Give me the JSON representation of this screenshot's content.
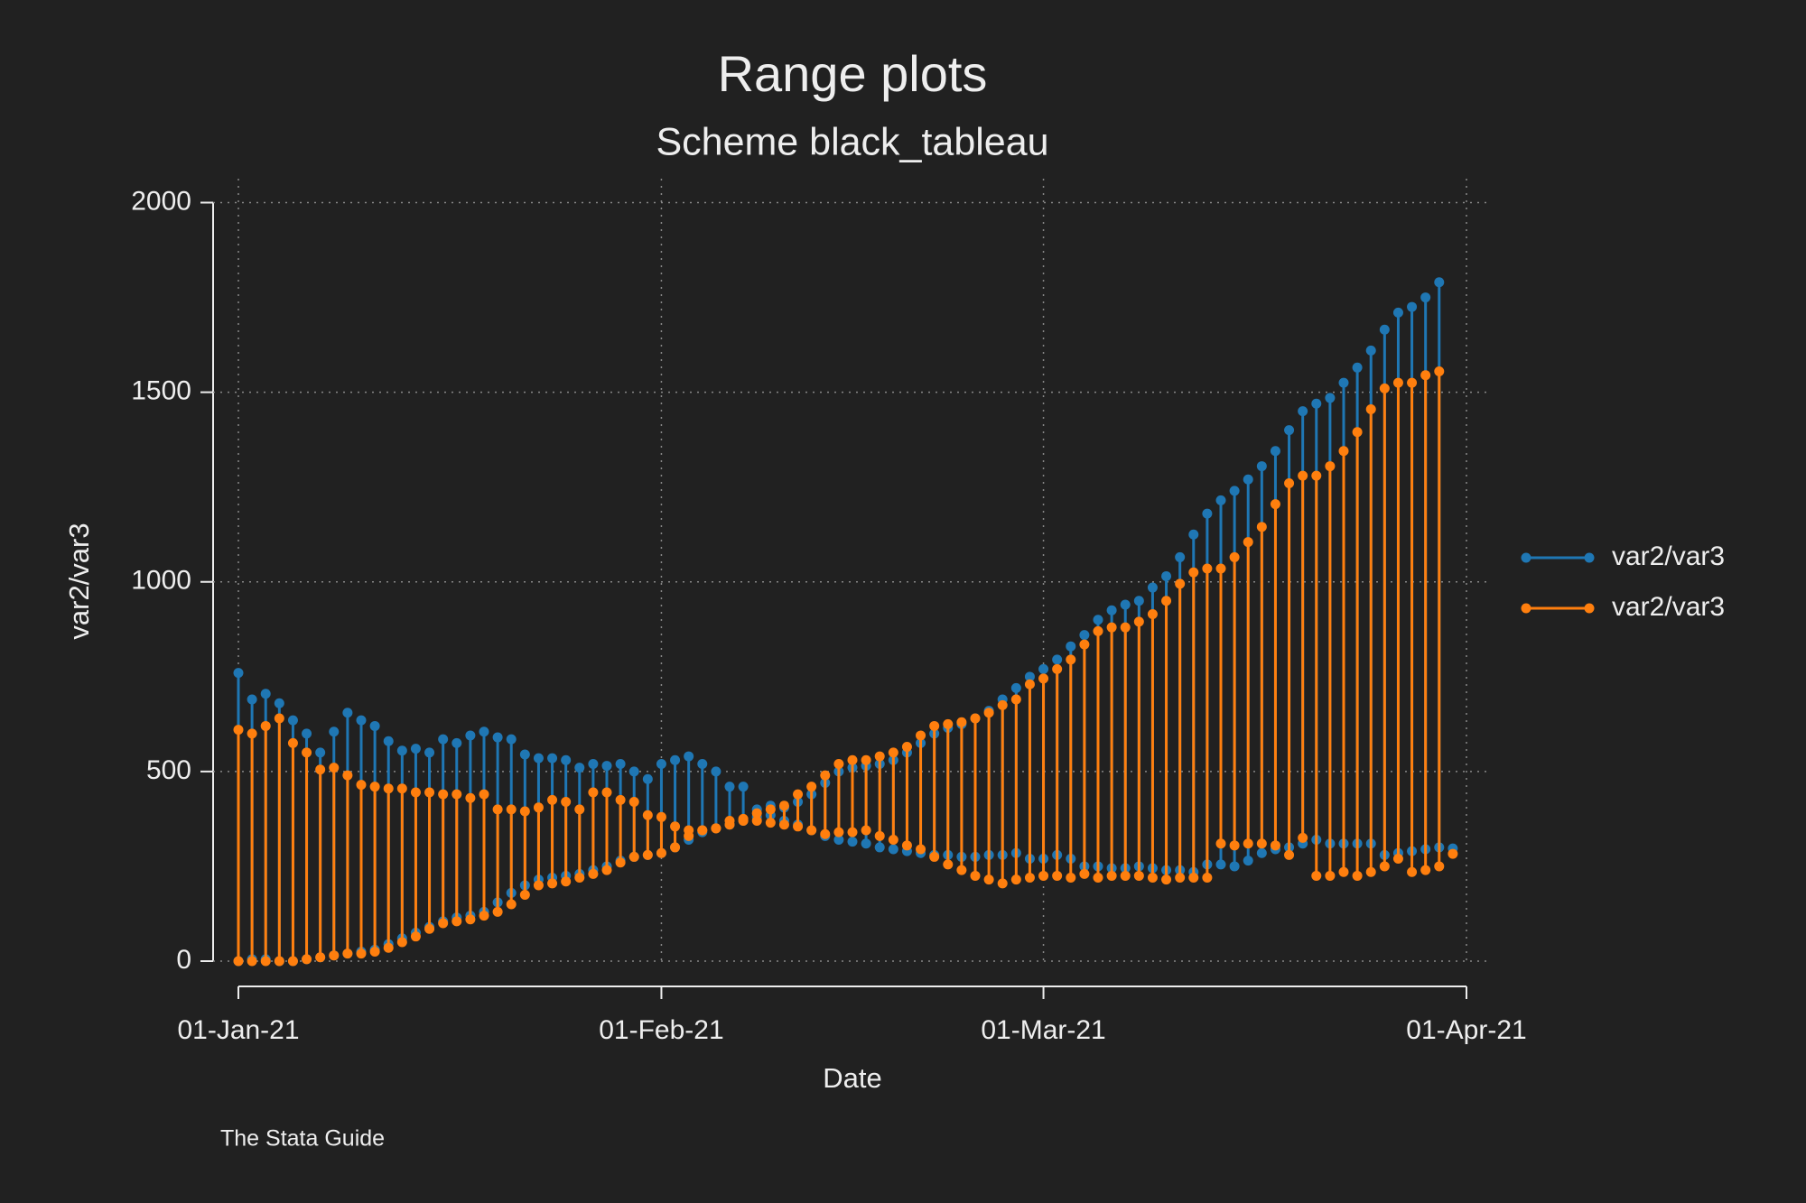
{
  "chart_data": {
    "type": "range",
    "title": "Range plots",
    "subtitle": "Scheme black_tableau",
    "xlabel": "Date",
    "ylabel": "var2/var3",
    "note": "The Stata Guide",
    "x": [
      22281,
      22282,
      22283,
      22284,
      22285,
      22286,
      22287,
      22288,
      22289,
      22290,
      22291,
      22292,
      22293,
      22294,
      22295,
      22296,
      22297,
      22298,
      22299,
      22300,
      22301,
      22302,
      22303,
      22304,
      22305,
      22306,
      22307,
      22308,
      22309,
      22310,
      22311,
      22312,
      22313,
      22314,
      22315,
      22316,
      22317,
      22318,
      22319,
      22320,
      22321,
      22322,
      22323,
      22324,
      22325,
      22326,
      22327,
      22328,
      22329,
      22330,
      22331,
      22332,
      22333,
      22334,
      22335,
      22336,
      22337,
      22338,
      22339,
      22340,
      22341,
      22342,
      22343,
      22344,
      22345,
      22346,
      22347,
      22348,
      22349,
      22350,
      22351,
      22352,
      22353,
      22354,
      22355,
      22356,
      22357,
      22358,
      22359,
      22360,
      22361,
      22362,
      22363,
      22364,
      22365,
      22366,
      22367,
      22368,
      22369,
      22370
    ],
    "series": [
      {
        "name": "var2/var3",
        "color": "#1f77b4",
        "high": [
          760,
          690,
          705,
          680,
          635,
          600,
          550,
          605,
          655,
          635,
          620,
          580,
          555,
          560,
          550,
          585,
          575,
          595,
          605,
          590,
          585,
          545,
          535,
          535,
          530,
          510,
          520,
          515,
          520,
          500,
          480,
          520,
          530,
          540,
          520,
          500,
          460,
          460,
          400,
          410,
          405,
          420,
          440,
          470,
          500,
          510,
          515,
          520,
          530,
          550,
          575,
          600,
          615,
          625,
          640,
          660,
          690,
          720,
          750,
          770,
          795,
          830,
          860,
          900,
          925,
          940,
          950,
          985,
          1015,
          1065,
          1125,
          1180,
          1215,
          1240,
          1270,
          1305,
          1345,
          1400,
          1450,
          1470,
          1485,
          1525,
          1565,
          1610,
          1665,
          1710,
          1725,
          1750,
          1790,
          null
        ],
        "low": [
          0,
          5,
          5,
          0,
          0,
          5,
          10,
          15,
          20,
          25,
          30,
          45,
          60,
          75,
          90,
          105,
          115,
          120,
          130,
          155,
          180,
          200,
          215,
          220,
          225,
          230,
          240,
          250,
          265,
          275,
          280,
          285,
          300,
          320,
          340,
          350,
          360,
          370,
          380,
          385,
          370,
          360,
          345,
          330,
          320,
          315,
          310,
          300,
          295,
          290,
          285,
          280,
          280,
          275,
          275,
          280,
          280,
          285,
          270,
          270,
          280,
          270,
          250,
          250,
          245,
          245,
          250,
          245,
          240,
          240,
          235,
          255,
          255,
          250,
          265,
          285,
          295,
          300,
          310,
          320,
          310,
          310,
          310,
          310,
          280,
          285,
          290,
          295,
          300,
          297
        ]
      },
      {
        "name": "var2/var3",
        "color": "#ff7f0e",
        "high": [
          610,
          600,
          620,
          640,
          575,
          550,
          505,
          510,
          490,
          465,
          460,
          455,
          455,
          445,
          445,
          440,
          440,
          430,
          440,
          400,
          400,
          395,
          405,
          425,
          420,
          400,
          445,
          445,
          425,
          420,
          385,
          380,
          355,
          345,
          345,
          350,
          370,
          375,
          390,
          400,
          410,
          440,
          460,
          490,
          520,
          530,
          530,
          540,
          550,
          565,
          595,
          620,
          625,
          630,
          640,
          655,
          675,
          690,
          730,
          745,
          770,
          795,
          835,
          870,
          880,
          880,
          895,
          915,
          950,
          995,
          1025,
          1035,
          1035,
          1065,
          1105,
          1145,
          1205,
          1260,
          1280,
          1280,
          1305,
          1345,
          1395,
          1455,
          1510,
          1525,
          1525,
          1545,
          1555,
          null
        ],
        "low": [
          0,
          0,
          0,
          0,
          0,
          5,
          10,
          15,
          20,
          20,
          25,
          35,
          50,
          65,
          85,
          100,
          105,
          110,
          120,
          130,
          150,
          175,
          200,
          205,
          210,
          220,
          230,
          240,
          260,
          275,
          280,
          285,
          300,
          330,
          345,
          350,
          360,
          370,
          370,
          365,
          360,
          355,
          345,
          335,
          340,
          340,
          345,
          330,
          320,
          305,
          295,
          275,
          255,
          240,
          225,
          215,
          205,
          215,
          220,
          225,
          225,
          220,
          230,
          220,
          225,
          225,
          225,
          220,
          215,
          220,
          220,
          220,
          310,
          305,
          310,
          310,
          305,
          280,
          325,
          225,
          225,
          235,
          225,
          235,
          250,
          270,
          235,
          240,
          250,
          283
        ]
      }
    ],
    "xlim": [
      22281,
      22371
    ],
    "xticks": [
      {
        "value": 22281,
        "label": "01-Jan-21"
      },
      {
        "value": 22312,
        "label": "01-Feb-21"
      },
      {
        "value": 22340,
        "label": "01-Mar-21"
      },
      {
        "value": 22371,
        "label": "01-Apr-21"
      }
    ],
    "ylim": [
      0,
      2000
    ],
    "yticks": [
      0,
      500,
      1000,
      1500,
      2000
    ],
    "grid": true,
    "legend": "right"
  }
}
